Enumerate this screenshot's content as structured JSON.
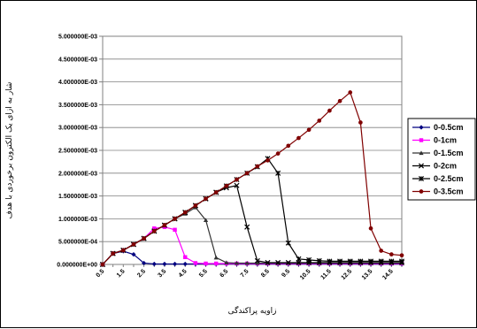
{
  "chart_data": {
    "type": "line",
    "title": "",
    "xlabel": "زاویه پراکندگی",
    "ylabel": "شار به ازای یک الکترون برخوردی با هدف",
    "x": [
      0.5,
      1,
      1.5,
      2,
      2.5,
      3,
      3.5,
      4,
      4.5,
      5,
      5.5,
      6,
      6.5,
      7,
      7.5,
      8,
      8.5,
      9,
      9.5,
      10,
      10.5,
      11,
      11.5,
      12,
      12.5,
      13,
      13.5,
      14,
      14.5,
      15
    ],
    "x_tick_labels": [
      "0.5",
      "1.5",
      "2.5",
      "3.5",
      "4.5",
      "5.5",
      "6.5",
      "7.5",
      "8.5",
      "9.5",
      "10.5",
      "11.5",
      "12.5",
      "13.5",
      "14.5"
    ],
    "y_tick_labels": [
      "0.000000E+00",
      "5.000000E-04",
      "1.000000E-03",
      "1.500000E-03",
      "2.000000E-03",
      "2.500000E-03",
      "3.000000E-03",
      "3.500000E-03",
      "4.000000E-03",
      "4.500000E-03",
      "5.000000E-03"
    ],
    "ylim": [
      0,
      0.005
    ],
    "xlim": [
      0.5,
      15
    ],
    "grid": "horizontal",
    "legend_position": "right",
    "series": [
      {
        "name": "0-0.5cm",
        "color": "#000080",
        "marker": "diamond",
        "values": [
          0,
          0.00024,
          0.00029,
          0.00022,
          3e-05,
          1e-05,
          1e-05,
          1e-05,
          1e-05,
          1e-05,
          1e-05,
          1e-05,
          1e-05,
          1e-05,
          1e-05,
          1e-05,
          1e-05,
          1e-05,
          1e-05,
          1e-05,
          1e-05,
          1e-05,
          1e-05,
          1e-05,
          1e-05,
          1e-05,
          1e-05,
          1e-05,
          1e-05,
          1e-05
        ]
      },
      {
        "name": "0-1cm",
        "color": "#ff00ff",
        "marker": "square",
        "values": [
          0,
          0.00024,
          0.00031,
          0.00044,
          0.00057,
          0.00079,
          0.00082,
          0.00076,
          0.00016,
          3e-05,
          2e-05,
          2e-05,
          2e-05,
          2e-05,
          2e-05,
          2e-05,
          2e-05,
          2e-05,
          2e-05,
          2e-05,
          2e-05,
          2e-05,
          2e-05,
          2e-05,
          2e-05,
          2e-05,
          2e-05,
          2e-05,
          2e-05,
          2e-05
        ]
      },
      {
        "name": "0-1.5cm",
        "color": "#333333",
        "marker": "triangle",
        "values": [
          0,
          0.00024,
          0.00031,
          0.00044,
          0.00057,
          0.00073,
          0.00086,
          0.001,
          0.00111,
          0.00125,
          0.00097,
          0.00015,
          4e-05,
          3e-05,
          3e-05,
          3e-05,
          3e-05,
          3e-05,
          3e-05,
          3e-05,
          3e-05,
          3e-05,
          3e-05,
          3e-05,
          3e-05,
          3e-05,
          3e-05,
          3e-05,
          3e-05,
          3e-05
        ]
      },
      {
        "name": "0-2cm",
        "color": "#000000",
        "marker": "x",
        "values": [
          0,
          0.00024,
          0.00031,
          0.00044,
          0.00057,
          0.00073,
          0.00086,
          0.001,
          0.00114,
          0.00129,
          0.00144,
          0.00158,
          0.00168,
          0.00173,
          0.00082,
          8e-05,
          4e-05,
          4e-05,
          4e-05,
          4e-05,
          4e-05,
          4e-05,
          4e-05,
          4e-05,
          4e-05,
          4e-05,
          4e-05,
          4e-05,
          4e-05,
          4e-05
        ]
      },
      {
        "name": "0-2.5cm",
        "color": "#000000",
        "marker": "star",
        "values": [
          0,
          0.00024,
          0.00031,
          0.00044,
          0.00057,
          0.00073,
          0.00086,
          0.001,
          0.00114,
          0.00129,
          0.00144,
          0.00158,
          0.00172,
          0.00186,
          0.002,
          0.00214,
          0.00232,
          0.002,
          0.00047,
          0.00012,
          0.0001,
          8e-05,
          7e-05,
          7e-05,
          7e-05,
          7e-05,
          7e-05,
          7e-05,
          7e-05,
          7e-05
        ]
      },
      {
        "name": "0-3.5cm",
        "color": "#800000",
        "marker": "circle",
        "values": [
          0,
          0.00024,
          0.00031,
          0.00044,
          0.00057,
          0.00073,
          0.00086,
          0.001,
          0.00114,
          0.00129,
          0.00144,
          0.00158,
          0.00172,
          0.00186,
          0.002,
          0.00215,
          0.00228,
          0.00243,
          0.0026,
          0.00277,
          0.00295,
          0.00315,
          0.00337,
          0.00358,
          0.00377,
          0.00311,
          0.00079,
          0.0003,
          0.00022,
          0.0002
        ]
      }
    ]
  }
}
